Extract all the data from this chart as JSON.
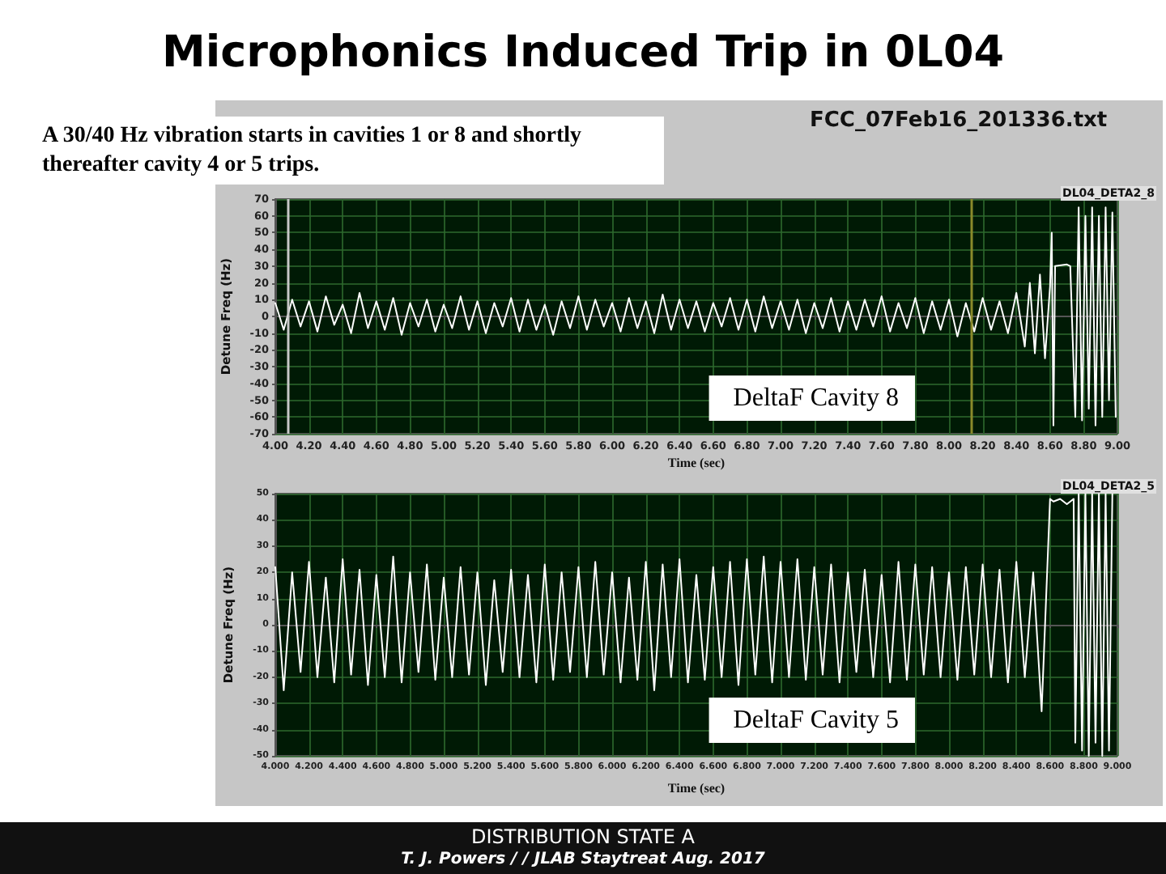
{
  "chart_data": [
    {
      "type": "line",
      "title": "Microphonics Induced Trip in 0L04",
      "xlabel": "Time (sec)",
      "ylabel": "Detune Freq (Hz)",
      "annotations": [
        "A 30/40 Hz vibration starts in cavities 1 or 8 and shortly thereafter cavity 4 or 5 trips.",
        "FCC_07Feb16_201336.txt",
        "DL04_DETA2_8"
      ],
      "xlim": [
        4.0,
        9.0
      ],
      "ylim": [
        -70,
        70
      ],
      "xticks": [
        {
          "value": 4.0,
          "label": "4.00"
        },
        {
          "value": 4.2,
          "label": "4.20"
        },
        {
          "value": 4.4,
          "label": "4.40"
        },
        {
          "value": 4.6,
          "label": "4.60"
        },
        {
          "value": 4.8,
          "label": "4.80"
        },
        {
          "value": 5.0,
          "label": "5.00"
        },
        {
          "value": 5.2,
          "label": "5.20"
        },
        {
          "value": 5.4,
          "label": "5.40"
        },
        {
          "value": 5.6,
          "label": "5.60"
        },
        {
          "value": 5.8,
          "label": "5.80"
        },
        {
          "value": 6.0,
          "label": "6.00"
        },
        {
          "value": 6.2,
          "label": "6.20"
        },
        {
          "value": 6.4,
          "label": "6.40"
        },
        {
          "value": 6.6,
          "label": "6.60"
        },
        {
          "value": 6.8,
          "label": "6.80"
        },
        {
          "value": 7.0,
          "label": "7.00"
        },
        {
          "value": 7.2,
          "label": "7.20"
        },
        {
          "value": 7.4,
          "label": "7.40"
        },
        {
          "value": 7.6,
          "label": "7.60"
        },
        {
          "value": 7.8,
          "label": "7.80"
        },
        {
          "value": 8.0,
          "label": "8.00"
        },
        {
          "value": 8.2,
          "label": "8.20"
        },
        {
          "value": 8.4,
          "label": "8.40"
        },
        {
          "value": 8.6,
          "label": "8.60"
        },
        {
          "value": 8.8,
          "label": "8.80"
        },
        {
          "value": 9.0,
          "label": "9.00"
        }
      ],
      "yticks": [
        -70,
        -60,
        -50,
        -40,
        -30,
        -20,
        -10,
        0,
        10,
        20,
        30,
        40,
        50,
        60,
        70
      ],
      "grid": true,
      "legend": "bottom right",
      "marker": "none",
      "line_style": "solid",
      "ref_lines": [
        {
          "axis": "x",
          "value": 4.07,
          "label": null,
          "color": "#c8c8c8"
        },
        {
          "axis": "x",
          "value": 8.13,
          "label": null,
          "color": "#8a8a2a"
        }
      ],
      "series": [
        {
          "name": "DeltaF Cavity 8",
          "color": "#ffffff",
          "x": [
            4.0,
            4.05,
            4.1,
            4.15,
            4.2,
            4.25,
            4.3,
            4.35,
            4.4,
            4.45,
            4.5,
            4.55,
            4.6,
            4.65,
            4.7,
            4.75,
            4.8,
            4.85,
            4.9,
            4.95,
            5.0,
            5.05,
            5.1,
            5.15,
            5.2,
            5.25,
            5.3,
            5.35,
            5.4,
            5.45,
            5.5,
            5.55,
            5.6,
            5.65,
            5.7,
            5.75,
            5.8,
            5.85,
            5.9,
            5.95,
            6.0,
            6.05,
            6.1,
            6.15,
            6.2,
            6.25,
            6.3,
            6.35,
            6.4,
            6.45,
            6.5,
            6.55,
            6.6,
            6.65,
            6.7,
            6.75,
            6.8,
            6.85,
            6.9,
            6.95,
            7.0,
            7.05,
            7.1,
            7.15,
            7.2,
            7.25,
            7.3,
            7.35,
            7.4,
            7.45,
            7.5,
            7.55,
            7.6,
            7.65,
            7.7,
            7.75,
            7.8,
            7.85,
            7.9,
            7.95,
            8.0,
            8.05,
            8.1,
            8.15,
            8.2,
            8.25,
            8.3,
            8.35,
            8.4,
            8.45,
            8.48,
            8.51,
            8.54,
            8.57,
            8.6,
            8.61,
            8.62,
            8.63,
            8.7,
            8.72,
            8.75,
            8.77,
            8.79,
            8.81,
            8.83,
            8.85,
            8.87,
            8.89,
            8.91,
            8.93,
            8.95,
            8.97,
            8.99
          ],
          "values": [
            8,
            -8,
            10,
            -6,
            9,
            -9,
            12,
            -5,
            7,
            -10,
            14,
            -7,
            9,
            -8,
            11,
            -11,
            8,
            -6,
            10,
            -9,
            7,
            -7,
            12,
            -8,
            9,
            -10,
            8,
            -6,
            11,
            -9,
            10,
            -8,
            7,
            -11,
            9,
            -7,
            12,
            -8,
            10,
            -6,
            8,
            -9,
            11,
            -7,
            9,
            -10,
            13,
            -8,
            10,
            -7,
            9,
            -9,
            8,
            -6,
            11,
            -8,
            10,
            -9,
            12,
            -7,
            9,
            -8,
            10,
            -10,
            8,
            -7,
            11,
            -9,
            9,
            -8,
            10,
            -6,
            12,
            -9,
            8,
            -7,
            11,
            -10,
            9,
            -8,
            10,
            -12,
            8,
            -9,
            11,
            -8,
            9,
            -10,
            14,
            -18,
            20,
            -22,
            25,
            -25,
            18,
            50,
            -65,
            30,
            31,
            30,
            -60,
            65,
            -62,
            60,
            -55,
            65,
            -65,
            60,
            -60,
            65,
            -50,
            62,
            -60
          ]
        }
      ]
    },
    {
      "type": "line",
      "xlabel": "Time (sec)",
      "ylabel": "Detune Freq (Hz)",
      "annotations": [
        "DL04_DETA2_5",
        "DISTRIBUTION STATE A",
        "T. J. Powers / / JLAB Staytreat Aug. 2017"
      ],
      "xlim": [
        4.0,
        9.0
      ],
      "ylim": [
        -50,
        50
      ],
      "xticks": [
        {
          "value": 4.0,
          "label": "4.000"
        },
        {
          "value": 4.2,
          "label": "4.200"
        },
        {
          "value": 4.4,
          "label": "4.400"
        },
        {
          "value": 4.6,
          "label": "4.600"
        },
        {
          "value": 4.8,
          "label": "4.800"
        },
        {
          "value": 5.0,
          "label": "5.000"
        },
        {
          "value": 5.2,
          "label": "5.200"
        },
        {
          "value": 5.4,
          "label": "5.400"
        },
        {
          "value": 5.6,
          "label": "5.600"
        },
        {
          "value": 5.8,
          "label": "5.800"
        },
        {
          "value": 6.0,
          "label": "6.000"
        },
        {
          "value": 6.2,
          "label": "6.200"
        },
        {
          "value": 6.4,
          "label": "6.400"
        },
        {
          "value": 6.6,
          "label": "6.600"
        },
        {
          "value": 6.8,
          "label": "6.800"
        },
        {
          "value": 7.0,
          "label": "7.000"
        },
        {
          "value": 7.2,
          "label": "7.200"
        },
        {
          "value": 7.4,
          "label": "7.400"
        },
        {
          "value": 7.6,
          "label": "7.600"
        },
        {
          "value": 7.8,
          "label": "7.800"
        },
        {
          "value": 8.0,
          "label": "8.000"
        },
        {
          "value": 8.2,
          "label": "8.200"
        },
        {
          "value": 8.4,
          "label": "8.400"
        },
        {
          "value": 8.6,
          "label": "8.600"
        },
        {
          "value": 8.8,
          "label": "8.800"
        },
        {
          "value": 9.0,
          "label": "9.000"
        }
      ],
      "yticks": [
        -50,
        -40,
        -30,
        -20,
        -10,
        0,
        10,
        20,
        30,
        40,
        50
      ],
      "grid": true,
      "legend": "bottom right",
      "marker": "none",
      "line_style": "solid",
      "series": [
        {
          "name": "DeltaF Cavity 5",
          "color": "#ffffff",
          "x": [
            4.0,
            4.05,
            4.1,
            4.15,
            4.2,
            4.25,
            4.3,
            4.35,
            4.4,
            4.45,
            4.5,
            4.55,
            4.6,
            4.65,
            4.7,
            4.75,
            4.8,
            4.85,
            4.9,
            4.95,
            5.0,
            5.05,
            5.1,
            5.15,
            5.2,
            5.25,
            5.3,
            5.35,
            5.4,
            5.45,
            5.5,
            5.55,
            5.6,
            5.65,
            5.7,
            5.75,
            5.8,
            5.85,
            5.9,
            5.95,
            6.0,
            6.05,
            6.1,
            6.15,
            6.2,
            6.25,
            6.3,
            6.35,
            6.4,
            6.45,
            6.5,
            6.55,
            6.6,
            6.65,
            6.7,
            6.75,
            6.8,
            6.85,
            6.9,
            6.95,
            7.0,
            7.05,
            7.1,
            7.15,
            7.2,
            7.25,
            7.3,
            7.35,
            7.4,
            7.45,
            7.5,
            7.55,
            7.6,
            7.65,
            7.7,
            7.75,
            7.8,
            7.85,
            7.9,
            7.95,
            8.0,
            8.05,
            8.1,
            8.15,
            8.2,
            8.25,
            8.3,
            8.35,
            8.4,
            8.45,
            8.5,
            8.55,
            8.6,
            8.62,
            8.66,
            8.7,
            8.74,
            8.75,
            8.77,
            8.79,
            8.81,
            8.83,
            8.85,
            8.87,
            8.89,
            8.91,
            8.93,
            8.95,
            8.97
          ],
          "values": [
            22,
            -25,
            20,
            -18,
            24,
            -20,
            18,
            -22,
            25,
            -19,
            21,
            -23,
            19,
            -20,
            26,
            -22,
            20,
            -18,
            23,
            -21,
            18,
            -20,
            22,
            -19,
            20,
            -23,
            17,
            -18,
            21,
            -20,
            19,
            -22,
            23,
            -21,
            20,
            -18,
            22,
            -20,
            24,
            -19,
            20,
            -22,
            18,
            -21,
            24,
            -25,
            23,
            -20,
            25,
            -22,
            19,
            -21,
            22,
            -20,
            24,
            -23,
            25,
            -19,
            26,
            -22,
            24,
            -20,
            25,
            -21,
            22,
            -19,
            23,
            -22,
            20,
            -18,
            21,
            -20,
            19,
            -22,
            24,
            -21,
            23,
            -19,
            22,
            -20,
            20,
            -21,
            22,
            -19,
            23,
            -20,
            21,
            -22,
            24,
            -20,
            20,
            -33,
            48,
            47,
            48,
            46,
            48,
            -45,
            50,
            -48,
            50,
            -50,
            50,
            -45,
            50,
            -50,
            50,
            -48,
            50
          ]
        }
      ]
    }
  ]
}
